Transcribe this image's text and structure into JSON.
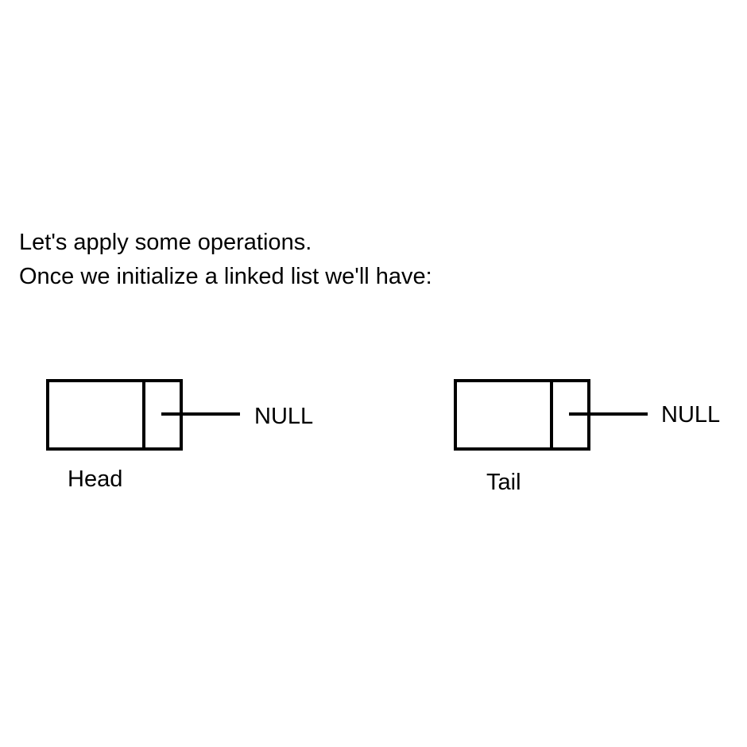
{
  "intro": {
    "line1": "Let's apply some operations.",
    "line2": "Once we initialize a linked list we'll have:"
  },
  "nodes": [
    {
      "label": "Head",
      "next": "NULL"
    },
    {
      "label": "Tail",
      "next": "NULL"
    }
  ]
}
